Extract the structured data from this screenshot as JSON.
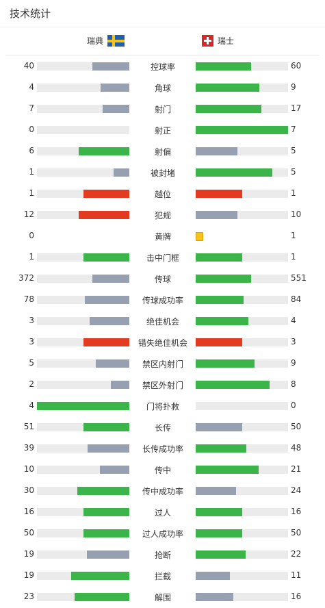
{
  "header": {
    "title": "技术统计"
  },
  "teams": {
    "home": "瑞典",
    "away": "瑞士"
  },
  "colors": {
    "green": "#3bb54a",
    "grey": "#96a0b0",
    "red": "#e23b22",
    "yellow": "#f7c21b",
    "track": "#ebebeb"
  },
  "stats": [
    {
      "label": "控球率",
      "home": "40",
      "away": "60",
      "home_color": "grey",
      "away_color": "green",
      "home_frac": 0.4,
      "away_frac": 0.6
    },
    {
      "label": "角球",
      "home": "4",
      "away": "9",
      "home_color": "grey",
      "away_color": "green",
      "home_frac": 0.31,
      "away_frac": 0.69
    },
    {
      "label": "射门",
      "home": "7",
      "away": "17",
      "home_color": "grey",
      "away_color": "green",
      "home_frac": 0.29,
      "away_frac": 0.71
    },
    {
      "label": "射正",
      "home": "0",
      "away": "7",
      "home_color": "grey",
      "away_color": "green",
      "home_frac": 0,
      "away_frac": 1
    },
    {
      "label": "射偏",
      "home": "6",
      "away": "5",
      "home_color": "green",
      "away_color": "grey",
      "home_frac": 0.55,
      "away_frac": 0.45
    },
    {
      "label": "被封堵",
      "home": "1",
      "away": "5",
      "home_color": "grey",
      "away_color": "green",
      "home_frac": 0.17,
      "away_frac": 0.83
    },
    {
      "label": "越位",
      "home": "1",
      "away": "1",
      "home_color": "red",
      "away_color": "red",
      "home_frac": 0.5,
      "away_frac": 0.5
    },
    {
      "label": "犯规",
      "home": "12",
      "away": "10",
      "home_color": "red",
      "away_color": "grey",
      "home_frac": 0.55,
      "away_frac": 0.45
    },
    {
      "label": "黄牌",
      "home": "0",
      "away": "1",
      "type": "card"
    },
    {
      "label": "击中门框",
      "home": "1",
      "away": "1",
      "home_color": "green",
      "away_color": "green",
      "home_frac": 0.5,
      "away_frac": 0.5
    },
    {
      "label": "传球",
      "home": "372",
      "away": "551",
      "home_color": "grey",
      "away_color": "green",
      "home_frac": 0.4,
      "away_frac": 0.6
    },
    {
      "label": "传球成功率",
      "home": "78",
      "away": "84",
      "home_color": "grey",
      "away_color": "green",
      "home_frac": 0.48,
      "away_frac": 0.52
    },
    {
      "label": "绝佳机会",
      "home": "3",
      "away": "4",
      "home_color": "grey",
      "away_color": "green",
      "home_frac": 0.43,
      "away_frac": 0.57
    },
    {
      "label": "错失绝佳机会",
      "home": "3",
      "away": "3",
      "home_color": "red",
      "away_color": "red",
      "home_frac": 0.5,
      "away_frac": 0.5
    },
    {
      "label": "禁区内射门",
      "home": "5",
      "away": "9",
      "home_color": "grey",
      "away_color": "green",
      "home_frac": 0.36,
      "away_frac": 0.64
    },
    {
      "label": "禁区外射门",
      "home": "2",
      "away": "8",
      "home_color": "grey",
      "away_color": "green",
      "home_frac": 0.2,
      "away_frac": 0.8
    },
    {
      "label": "门将扑救",
      "home": "4",
      "away": "0",
      "home_color": "green",
      "away_color": "grey",
      "home_frac": 1,
      "away_frac": 0
    },
    {
      "label": "长传",
      "home": "51",
      "away": "50",
      "home_color": "green",
      "away_color": "grey",
      "home_frac": 0.5,
      "away_frac": 0.5
    },
    {
      "label": "长传成功率",
      "home": "39",
      "away": "48",
      "home_color": "grey",
      "away_color": "green",
      "home_frac": 0.45,
      "away_frac": 0.55
    },
    {
      "label": "传中",
      "home": "10",
      "away": "21",
      "home_color": "grey",
      "away_color": "green",
      "home_frac": 0.32,
      "away_frac": 0.68
    },
    {
      "label": "传中成功率",
      "home": "30",
      "away": "24",
      "home_color": "green",
      "away_color": "grey",
      "home_frac": 0.56,
      "away_frac": 0.44
    },
    {
      "label": "过人",
      "home": "16",
      "away": "16",
      "home_color": "green",
      "away_color": "green",
      "home_frac": 0.5,
      "away_frac": 0.5
    },
    {
      "label": "过人成功率",
      "home": "50",
      "away": "50",
      "home_color": "green",
      "away_color": "green",
      "home_frac": 0.5,
      "away_frac": 0.5
    },
    {
      "label": "抢断",
      "home": "19",
      "away": "22",
      "home_color": "grey",
      "away_color": "green",
      "home_frac": 0.46,
      "away_frac": 0.54
    },
    {
      "label": "拦截",
      "home": "19",
      "away": "11",
      "home_color": "green",
      "away_color": "grey",
      "home_frac": 0.63,
      "away_frac": 0.37
    },
    {
      "label": "解围",
      "home": "23",
      "away": "16",
      "home_color": "green",
      "away_color": "grey",
      "home_frac": 0.59,
      "away_frac": 0.41
    }
  ]
}
